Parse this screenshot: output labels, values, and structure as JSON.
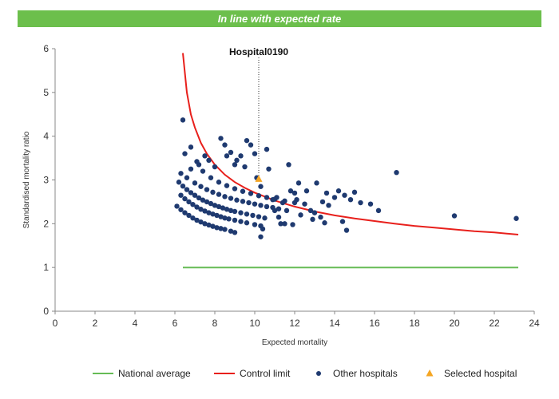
{
  "header": {
    "banner_text": "In line with expected rate"
  },
  "colors": {
    "banner": "#6cbf4c",
    "national_average": "#66bb55",
    "control_limit": "#e8201c",
    "other_hospitals": "#1f3a70",
    "selected_hospital": "#f5a623"
  },
  "chart_data": {
    "type": "scatter",
    "xlabel": "Expected mortality",
    "ylabel": "Standardised mortality ratio",
    "xlim": [
      0,
      24
    ],
    "ylim": [
      0,
      6
    ],
    "xticks": [
      0,
      2,
      4,
      6,
      8,
      10,
      12,
      14,
      16,
      18,
      20,
      22,
      24
    ],
    "yticks": [
      0,
      1,
      2,
      3,
      4,
      5,
      6
    ],
    "grid": false,
    "legend_position": "bottom",
    "annotation": {
      "label": "Hospital0190",
      "x": 10.2,
      "y": 3.0
    },
    "series": [
      {
        "name": "National average",
        "kind": "line",
        "x": [
          6.4,
          23.2
        ],
        "y": [
          1.0,
          1.0
        ]
      },
      {
        "name": "Control limit",
        "kind": "line",
        "x": [
          6.4,
          6.6,
          6.8,
          7.0,
          7.3,
          7.6,
          8.0,
          8.5,
          9.0,
          9.5,
          10.0,
          11.0,
          12.0,
          13.0,
          14.0,
          15.0,
          16.0,
          17.0,
          18.0,
          19.0,
          20.0,
          21.0,
          22.0,
          23.2
        ],
        "y": [
          5.9,
          5.0,
          4.5,
          4.2,
          3.85,
          3.6,
          3.35,
          3.12,
          2.95,
          2.82,
          2.71,
          2.53,
          2.39,
          2.28,
          2.19,
          2.12,
          2.06,
          2.0,
          1.95,
          1.91,
          1.87,
          1.83,
          1.8,
          1.75
        ]
      },
      {
        "name": "Other hospitals",
        "kind": "scatter",
        "points": [
          [
            6.1,
            2.4
          ],
          [
            6.3,
            2.32
          ],
          [
            6.5,
            2.25
          ],
          [
            6.7,
            2.19
          ],
          [
            6.9,
            2.13
          ],
          [
            7.1,
            2.08
          ],
          [
            7.3,
            2.04
          ],
          [
            7.5,
            2.0
          ],
          [
            7.7,
            1.97
          ],
          [
            7.9,
            1.94
          ],
          [
            8.1,
            1.91
          ],
          [
            8.3,
            1.89
          ],
          [
            8.5,
            1.87
          ],
          [
            8.8,
            1.83
          ],
          [
            9.0,
            1.8
          ],
          [
            6.3,
            2.65
          ],
          [
            6.5,
            2.57
          ],
          [
            6.7,
            2.5
          ],
          [
            6.9,
            2.44
          ],
          [
            7.1,
            2.38
          ],
          [
            7.3,
            2.33
          ],
          [
            7.5,
            2.29
          ],
          [
            7.7,
            2.25
          ],
          [
            7.9,
            2.22
          ],
          [
            8.1,
            2.19
          ],
          [
            8.3,
            2.16
          ],
          [
            8.5,
            2.13
          ],
          [
            8.7,
            2.11
          ],
          [
            9.0,
            2.08
          ],
          [
            9.3,
            2.05
          ],
          [
            9.6,
            2.02
          ],
          [
            10.0,
            1.98
          ],
          [
            10.3,
            1.95
          ],
          [
            6.2,
            2.95
          ],
          [
            6.4,
            2.86
          ],
          [
            6.6,
            2.78
          ],
          [
            6.8,
            2.71
          ],
          [
            7.0,
            2.65
          ],
          [
            7.2,
            2.59
          ],
          [
            7.4,
            2.54
          ],
          [
            7.6,
            2.5
          ],
          [
            7.8,
            2.46
          ],
          [
            8.0,
            2.42
          ],
          [
            8.2,
            2.39
          ],
          [
            8.4,
            2.36
          ],
          [
            8.6,
            2.33
          ],
          [
            8.8,
            2.3
          ],
          [
            9.0,
            2.28
          ],
          [
            9.3,
            2.25
          ],
          [
            9.6,
            2.22
          ],
          [
            9.9,
            2.19
          ],
          [
            10.2,
            2.16
          ],
          [
            10.5,
            2.13
          ],
          [
            6.3,
            3.15
          ],
          [
            6.6,
            3.05
          ],
          [
            7.0,
            2.93
          ],
          [
            7.3,
            2.85
          ],
          [
            7.6,
            2.78
          ],
          [
            7.9,
            2.72
          ],
          [
            8.2,
            2.67
          ],
          [
            8.5,
            2.62
          ],
          [
            8.8,
            2.58
          ],
          [
            9.1,
            2.54
          ],
          [
            9.4,
            2.51
          ],
          [
            9.7,
            2.48
          ],
          [
            10.0,
            2.45
          ],
          [
            10.3,
            2.42
          ],
          [
            10.6,
            2.39
          ],
          [
            10.9,
            2.37
          ],
          [
            11.2,
            2.34
          ],
          [
            7.4,
            3.2
          ],
          [
            7.8,
            3.05
          ],
          [
            8.2,
            2.95
          ],
          [
            8.6,
            2.87
          ],
          [
            9.0,
            2.8
          ],
          [
            9.4,
            2.74
          ],
          [
            9.8,
            2.69
          ],
          [
            10.2,
            2.64
          ],
          [
            10.6,
            2.6
          ],
          [
            11.0,
            2.56
          ],
          [
            11.5,
            2.52
          ],
          [
            12.0,
            2.48
          ],
          [
            6.4,
            4.37
          ],
          [
            6.5,
            3.6
          ],
          [
            6.8,
            3.75
          ],
          [
            6.8,
            3.25
          ],
          [
            7.1,
            3.42
          ],
          [
            7.2,
            3.35
          ],
          [
            7.5,
            3.55
          ],
          [
            7.7,
            3.45
          ],
          [
            8.0,
            3.3
          ],
          [
            8.3,
            3.95
          ],
          [
            8.5,
            3.8
          ],
          [
            8.6,
            3.55
          ],
          [
            8.8,
            3.63
          ],
          [
            9.0,
            3.35
          ],
          [
            9.1,
            3.45
          ],
          [
            9.3,
            3.55
          ],
          [
            9.5,
            3.3
          ],
          [
            9.6,
            3.9
          ],
          [
            9.8,
            3.8
          ],
          [
            10.0,
            3.6
          ],
          [
            10.1,
            3.05
          ],
          [
            10.3,
            2.85
          ],
          [
            10.6,
            3.7
          ],
          [
            10.7,
            3.25
          ],
          [
            10.9,
            2.55
          ],
          [
            11.0,
            2.3
          ],
          [
            11.1,
            2.6
          ],
          [
            11.2,
            2.15
          ],
          [
            11.3,
            2.0
          ],
          [
            11.4,
            2.48
          ],
          [
            11.5,
            2.0
          ],
          [
            11.6,
            2.3
          ],
          [
            11.7,
            3.35
          ],
          [
            11.8,
            2.75
          ],
          [
            11.9,
            1.98
          ],
          [
            12.0,
            2.7
          ],
          [
            12.1,
            2.55
          ],
          [
            12.2,
            2.93
          ],
          [
            12.3,
            2.2
          ],
          [
            12.5,
            2.45
          ],
          [
            12.6,
            2.75
          ],
          [
            12.8,
            2.3
          ],
          [
            12.9,
            2.1
          ],
          [
            13.0,
            2.25
          ],
          [
            13.1,
            2.93
          ],
          [
            13.3,
            2.15
          ],
          [
            13.4,
            2.5
          ],
          [
            13.5,
            2.02
          ],
          [
            13.6,
            2.7
          ],
          [
            13.7,
            2.42
          ],
          [
            14.0,
            2.6
          ],
          [
            14.2,
            2.75
          ],
          [
            14.4,
            2.05
          ],
          [
            14.5,
            2.65
          ],
          [
            14.6,
            1.85
          ],
          [
            14.8,
            2.55
          ],
          [
            15.0,
            2.72
          ],
          [
            10.3,
            1.7
          ],
          [
            10.4,
            1.88
          ],
          [
            15.3,
            2.48
          ],
          [
            15.8,
            2.45
          ],
          [
            16.2,
            2.3
          ],
          [
            17.1,
            3.17
          ],
          [
            20.0,
            2.18
          ],
          [
            23.1,
            2.12
          ]
        ]
      },
      {
        "name": "Selected hospital",
        "kind": "scatter",
        "points": [
          [
            10.2,
            3.02
          ]
        ]
      }
    ]
  }
}
